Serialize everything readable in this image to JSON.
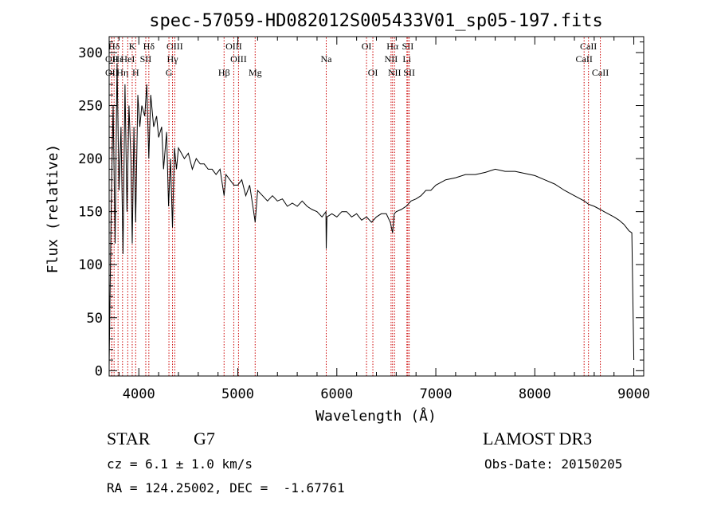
{
  "chart_data": {
    "type": "line",
    "title": "spec-57059-HD082012S005433V01_sp05-197.fits",
    "xlabel": "Wavelength (Å)",
    "ylabel": "Flux (relative)",
    "xlim": [
      3700,
      9100
    ],
    "ylim": [
      -5,
      315
    ],
    "xticks": [
      4000,
      5000,
      6000,
      7000,
      8000,
      9000
    ],
    "yticks": [
      0,
      50,
      100,
      150,
      200,
      250,
      300
    ],
    "grid": false,
    "series": [
      {
        "name": "spectrum",
        "x": [
          3700,
          3720,
          3740,
          3760,
          3780,
          3800,
          3820,
          3840,
          3860,
          3880,
          3900,
          3920,
          3933,
          3950,
          3968,
          3990,
          4010,
          4030,
          4060,
          4080,
          4101,
          4120,
          4150,
          4180,
          4200,
          4230,
          4250,
          4280,
          4300,
          4320,
          4340,
          4360,
          4380,
          4400,
          4430,
          4460,
          4500,
          4540,
          4580,
          4620,
          4660,
          4700,
          4740,
          4780,
          4820,
          4861,
          4880,
          4920,
          4960,
          5000,
          5040,
          5080,
          5120,
          5160,
          5175,
          5200,
          5250,
          5300,
          5350,
          5400,
          5450,
          5500,
          5550,
          5600,
          5650,
          5700,
          5750,
          5800,
          5850,
          5890,
          5893,
          5900,
          5950,
          6000,
          6050,
          6100,
          6150,
          6200,
          6250,
          6300,
          6350,
          6400,
          6450,
          6500,
          6540,
          6563,
          6580,
          6600,
          6650,
          6700,
          6750,
          6800,
          6850,
          6900,
          6950,
          7000,
          7100,
          7200,
          7300,
          7400,
          7500,
          7600,
          7700,
          7800,
          7900,
          8000,
          8100,
          8200,
          8300,
          8400,
          8500,
          8542,
          8600,
          8662,
          8700,
          8800,
          8850,
          8900,
          8950,
          8980,
          9000
        ],
        "y": [
          5,
          150,
          250,
          120,
          290,
          170,
          230,
          110,
          270,
          150,
          250,
          200,
          120,
          230,
          140,
          260,
          230,
          250,
          240,
          270,
          200,
          260,
          230,
          240,
          220,
          230,
          190,
          225,
          155,
          200,
          135,
          210,
          190,
          210,
          205,
          200,
          205,
          190,
          200,
          195,
          195,
          190,
          190,
          185,
          190,
          165,
          185,
          180,
          175,
          175,
          180,
          165,
          175,
          150,
          140,
          170,
          165,
          160,
          165,
          160,
          162,
          155,
          158,
          155,
          160,
          155,
          152,
          150,
          145,
          150,
          115,
          145,
          148,
          145,
          150,
          150,
          145,
          148,
          142,
          145,
          140,
          145,
          148,
          148,
          140,
          130,
          148,
          150,
          152,
          155,
          160,
          162,
          165,
          170,
          170,
          175,
          180,
          182,
          185,
          185,
          187,
          190,
          188,
          188,
          186,
          184,
          180,
          176,
          170,
          165,
          160,
          157,
          155,
          152,
          150,
          145,
          142,
          138,
          132,
          130,
          10
        ]
      }
    ],
    "line_markers": [
      {
        "label": "Hδ",
        "x": 3750,
        "tier": 1
      },
      {
        "label": "OII",
        "x": 3727,
        "tier": 2
      },
      {
        "label": "OII",
        "x": 3727,
        "tier": 3
      },
      {
        "label": "Hε",
        "x": 3790,
        "tier": 2
      },
      {
        "label": "Hη",
        "x": 3835,
        "tier": 3
      },
      {
        "label": "K",
        "x": 3933,
        "tier": 1
      },
      {
        "label": "HeI",
        "x": 3888,
        "tier": 2
      },
      {
        "label": "H",
        "x": 3968,
        "tier": 3
      },
      {
        "label": "SII",
        "x": 4070,
        "tier": 2
      },
      {
        "label": "Hδ",
        "x": 4101,
        "tier": 1
      },
      {
        "label": "OIII",
        "x": 4363,
        "tier": 1
      },
      {
        "label": "Hγ",
        "x": 4340,
        "tier": 2
      },
      {
        "label": "G",
        "x": 4304,
        "tier": 3
      },
      {
        "label": "Hβ",
        "x": 4861,
        "tier": 3
      },
      {
        "label": "OIII",
        "x": 4959,
        "tier": 1
      },
      {
        "label": "OIII",
        "x": 5007,
        "tier": 2
      },
      {
        "label": "Mg",
        "x": 5175,
        "tier": 3
      },
      {
        "label": "Na",
        "x": 5893,
        "tier": 2
      },
      {
        "label": "OI",
        "x": 6300,
        "tier": 1
      },
      {
        "label": "OI",
        "x": 6364,
        "tier": 3
      },
      {
        "label": "Hα",
        "x": 6563,
        "tier": 1
      },
      {
        "label": "NII",
        "x": 6548,
        "tier": 2
      },
      {
        "label": "NII",
        "x": 6583,
        "tier": 3
      },
      {
        "label": "SII",
        "x": 6717,
        "tier": 1
      },
      {
        "label": "Li",
        "x": 6708,
        "tier": 2
      },
      {
        "label": "SII",
        "x": 6731,
        "tier": 3
      },
      {
        "label": "CaII",
        "x": 8542,
        "tier": 1
      },
      {
        "label": "CaII",
        "x": 8498,
        "tier": 2
      },
      {
        "label": "CaII",
        "x": 8662,
        "tier": 3
      }
    ],
    "line_color": "#000000",
    "marker_color": "#cc0000"
  },
  "info": {
    "object_class": "STAR",
    "subclass": "G7",
    "survey": "LAMOST DR3",
    "redshift": "cz = 6.1 ± 1.0 km/s",
    "obs_date": "Obs-Date: 20150205",
    "coordinates": "RA = 124.25002, DEC =  -1.67761"
  }
}
